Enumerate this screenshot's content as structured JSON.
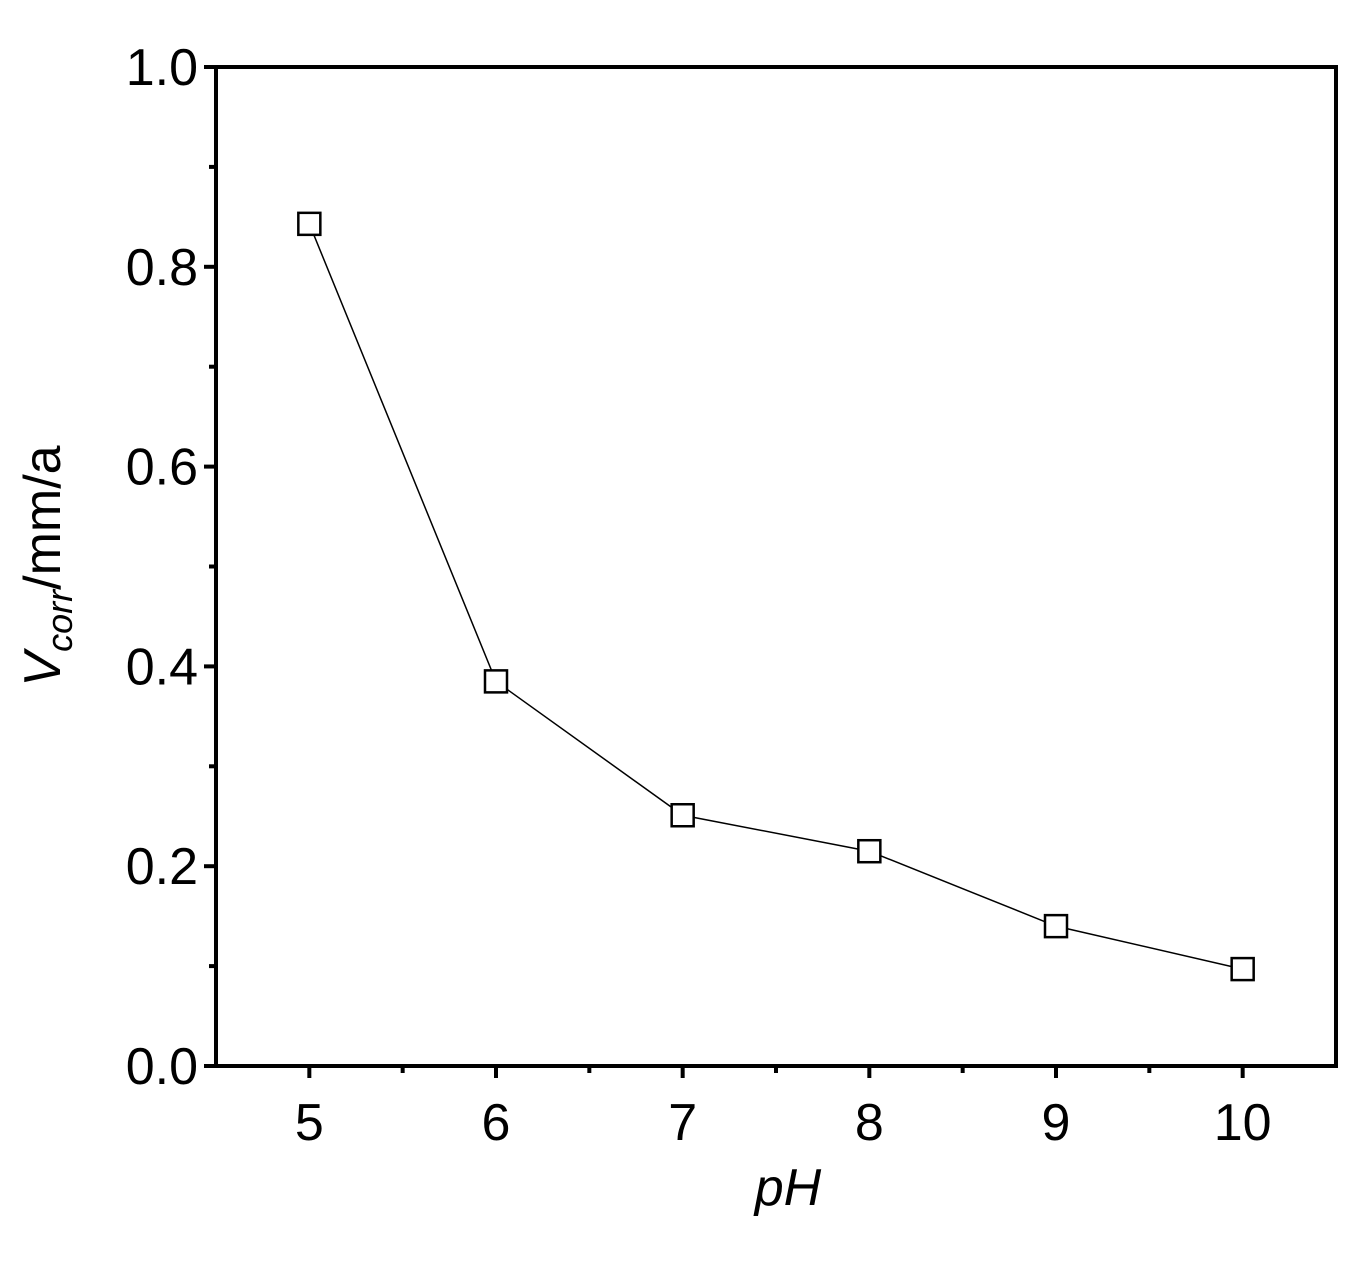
{
  "chart_data": {
    "type": "line",
    "x": [
      5,
      6,
      7,
      8,
      9,
      10
    ],
    "values": [
      0.843,
      0.385,
      0.251,
      0.215,
      0.14,
      0.097
    ],
    "color": "#000000",
    "marker": "square",
    "xlim": [
      4.5,
      10.5
    ],
    "xticks": [
      5,
      6,
      7,
      8,
      9,
      10
    ],
    "ylim": [
      0,
      1
    ],
    "yticks": [
      {
        "value": 0,
        "label": "0.0"
      },
      0.2,
      0.4,
      0.6,
      0.8,
      {
        "value": 1,
        "label": "1.0"
      }
    ],
    "xlabel": "pH",
    "ylabel": {
      "symbol": "V",
      "subscript": "corr",
      "unit": "/mm/a"
    }
  }
}
